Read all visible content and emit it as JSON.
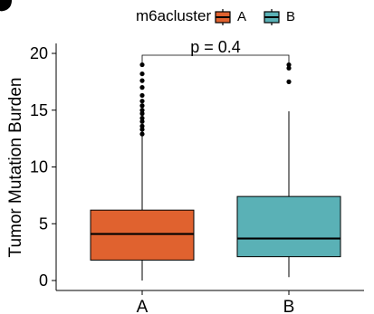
{
  "chart_data": {
    "type": "box",
    "title": "",
    "xlabel": "",
    "ylabel": "Tumor Mutation Burden",
    "ylim": [
      0,
      20.5
    ],
    "yticks": [
      0,
      5,
      10,
      15,
      20
    ],
    "grid": false,
    "legend": {
      "title": "m6acluster",
      "position": "top",
      "items": [
        "A",
        "B"
      ]
    },
    "annotation": "p = 0.4",
    "categories": [
      "A",
      "B"
    ],
    "colors": {
      "A": "#E0622F",
      "B": "#5AB1B6"
    },
    "boxes": [
      {
        "category": "A",
        "q1": 1.8,
        "median": 4.1,
        "q3": 6.2,
        "whisker_low": 0.0,
        "whisker_high": 12.7,
        "outliers": [
          12.9,
          13.3,
          13.6,
          14.0,
          14.3,
          14.7,
          15.0,
          15.4,
          15.8,
          16.3,
          17.0,
          17.6,
          18.2,
          19.0
        ]
      },
      {
        "category": "B",
        "q1": 2.1,
        "median": 3.7,
        "q3": 7.4,
        "whisker_low": 0.3,
        "whisker_high": 14.9,
        "outliers": [
          17.5,
          18.7,
          19.0
        ]
      }
    ]
  }
}
